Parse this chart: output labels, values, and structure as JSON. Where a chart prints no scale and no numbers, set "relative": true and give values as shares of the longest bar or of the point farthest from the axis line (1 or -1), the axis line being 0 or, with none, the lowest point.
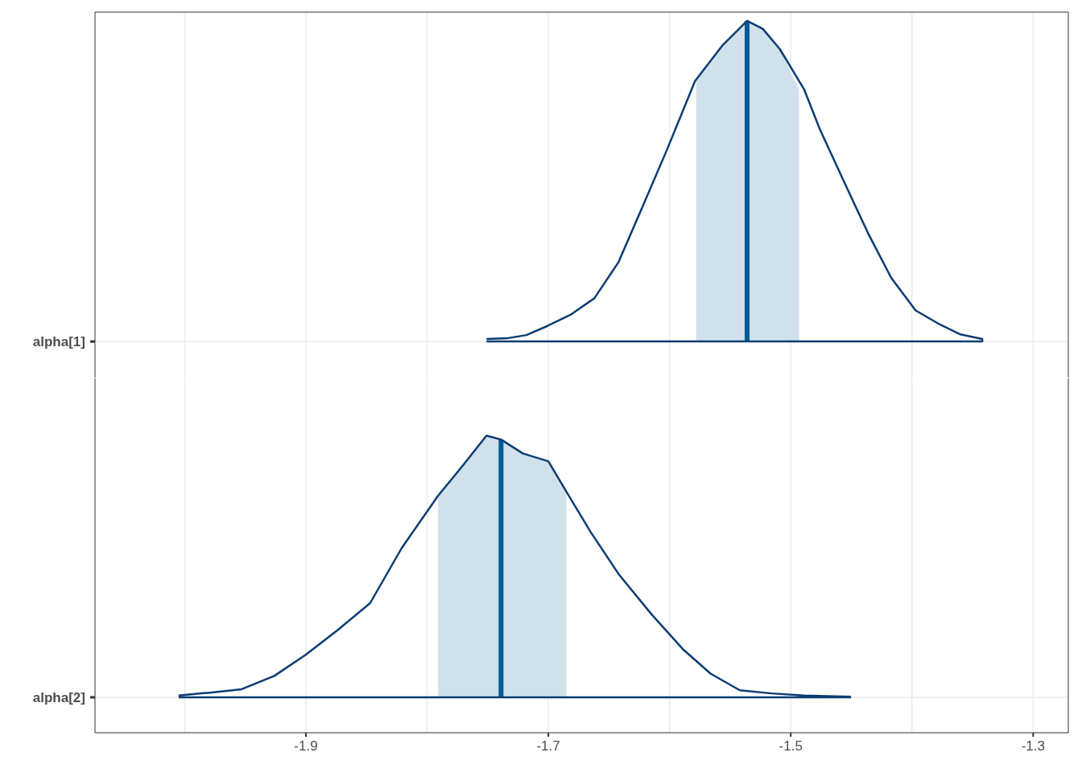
{
  "chart_data": [
    {
      "type": "line",
      "relative": true,
      "xlim": [
        -2.074,
        -1.271
      ],
      "tick_labels": false,
      "xticks": [
        {
          "value": -2.0,
          "label": null
        },
        -1.9,
        {
          "value": -1.8,
          "label": null
        },
        -1.7,
        {
          "value": -1.6,
          "label": null
        },
        -1.5,
        {
          "value": -1.4,
          "label": null
        },
        -1.3
      ],
      "grid": true,
      "series": [
        {
          "type": "area",
          "color": "#d1e1ec",
          "x": [
            -1.578,
            -1.556,
            -1.536,
            -1.523,
            -1.509,
            -1.493
          ],
          "values": [
            0.81,
            0.925,
            1,
            0.975,
            0.912,
            0.785
          ]
        },
        {
          "color": "#005b96",
          "x": [
            -1.536,
            -1.536
          ],
          "values": [
            0,
            1
          ]
        },
        {
          "name": "alpha[1]",
          "color": "#0b3c73",
          "x": [
            -1.751,
            -1.734,
            -1.718,
            -1.701,
            -1.681,
            -1.662,
            -1.642,
            -1.622,
            -1.602,
            -1.579,
            -1.556,
            -1.536,
            -1.523,
            -1.509,
            -1.489,
            -1.476,
            -1.456,
            -1.436,
            -1.417,
            -1.397,
            -1.377,
            -1.36,
            -1.342,
            -1.342,
            -1.751
          ],
          "values": [
            0.008,
            0.01,
            0.02,
            0.048,
            0.085,
            0.135,
            0.248,
            0.423,
            0.599,
            0.812,
            0.925,
            1,
            0.975,
            0.912,
            0.787,
            0.662,
            0.498,
            0.336,
            0.198,
            0.097,
            0.053,
            0.022,
            0.008,
            0,
            0
          ]
        }
      ]
    },
    {
      "type": "line",
      "relative": true,
      "xlim": [
        -2.074,
        -1.271
      ],
      "tick_labels": "x",
      "xticks": [
        {
          "value": -2.0,
          "label": null
        },
        -1.9,
        {
          "value": -1.8,
          "label": null
        },
        -1.7,
        {
          "value": -1.6,
          "label": null
        },
        -1.5,
        {
          "value": -1.4,
          "label": null
        },
        -1.3
      ],
      "grid": true,
      "series": [
        {
          "type": "area",
          "color": "#d1e1ec",
          "x": [
            -1.791,
            -1.771,
            -1.751,
            -1.739,
            -1.721,
            -1.7,
            -1.685
          ],
          "values": [
            0.77,
            0.883,
            1,
            0.985,
            0.932,
            0.902,
            0.787
          ]
        },
        {
          "color": "#005b96",
          "x": [
            -1.739,
            -1.739
          ],
          "values": [
            0,
            0.985
          ]
        },
        {
          "name": "alpha[2]",
          "color": "#0b3c73",
          "x": [
            -2.005,
            -1.979,
            -1.953,
            -1.926,
            -1.9,
            -1.874,
            -1.847,
            -1.821,
            -1.791,
            -1.771,
            -1.751,
            -1.739,
            -1.721,
            -1.7,
            -1.685,
            -1.665,
            -1.642,
            -1.615,
            -1.589,
            -1.566,
            -1.542,
            -1.516,
            -1.489,
            -1.451,
            -1.451,
            -2.005
          ],
          "values": [
            0.007,
            0.018,
            0.031,
            0.082,
            0.163,
            0.256,
            0.36,
            0.57,
            0.77,
            0.883,
            1,
            0.985,
            0.932,
            0.902,
            0.785,
            0.631,
            0.471,
            0.318,
            0.184,
            0.09,
            0.027,
            0.015,
            0.007,
            0.002,
            0,
            0
          ]
        }
      ]
    }
  ]
}
